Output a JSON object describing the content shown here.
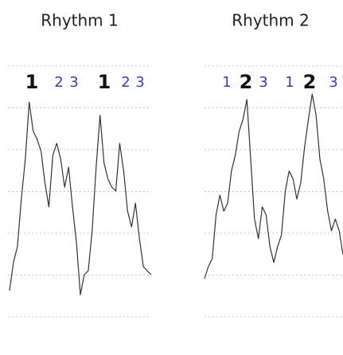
{
  "chart_data": [
    {
      "type": "line",
      "title": "Rhythm 1",
      "beats": [
        {
          "text": "1",
          "emphasis": true
        },
        {
          "text": "2",
          "emphasis": false
        },
        {
          "text": "3",
          "emphasis": false
        },
        {
          "text": "1",
          "emphasis": true
        },
        {
          "text": "2",
          "emphasis": false
        },
        {
          "text": "3",
          "emphasis": false
        }
      ],
      "values": [
        0.63,
        1.3,
        1.68,
        2.82,
        3.77,
        5.14,
        4.44,
        4.25,
        3.96,
        3.2,
        2.63,
        3.87,
        4.15,
        3.77,
        3.1,
        3.58,
        2.63,
        1.77,
        0.53,
        1.01,
        1.1,
        2.06,
        3.58,
        4.82,
        3.68,
        3.3,
        3.1,
        3.01,
        4.15,
        3.49,
        2.53,
        2.15,
        2.72,
        1.87,
        1.2,
        1.1,
        1.01
      ],
      "color": "#333333",
      "beat_color": "#3b3bc4",
      "emphasis_color": "#111111",
      "ylim": [
        0,
        6
      ],
      "yticks": [
        0,
        1,
        2,
        3,
        4,
        5,
        6
      ],
      "grid": true
    },
    {
      "type": "line",
      "title": "Rhythm 2",
      "beats": [
        {
          "text": "1",
          "emphasis": false
        },
        {
          "text": "2",
          "emphasis": true
        },
        {
          "text": "3",
          "emphasis": false
        },
        {
          "text": "1",
          "emphasis": false
        },
        {
          "text": "2",
          "emphasis": true
        },
        {
          "text": "3",
          "emphasis": false
        }
      ],
      "values": [
        0.91,
        1.2,
        1.39,
        2.44,
        2.91,
        2.53,
        2.72,
        3.49,
        3.87,
        4.44,
        4.72,
        5.2,
        3.77,
        2.34,
        1.87,
        2.63,
        2.44,
        1.68,
        1.3,
        1.68,
        1.96,
        3.01,
        3.49,
        3.3,
        2.82,
        3.2,
        4.06,
        4.72,
        5.33,
        4.82,
        3.77,
        3.3,
        2.53,
        2.06,
        2.34,
        2.06,
        1.49
      ],
      "color": "#333333",
      "beat_color": "#3b3bc4",
      "emphasis_color": "#111111",
      "ylim": [
        0,
        6
      ],
      "yticks": [
        0,
        1,
        2,
        3,
        4,
        5,
        6
      ],
      "grid": true
    }
  ]
}
